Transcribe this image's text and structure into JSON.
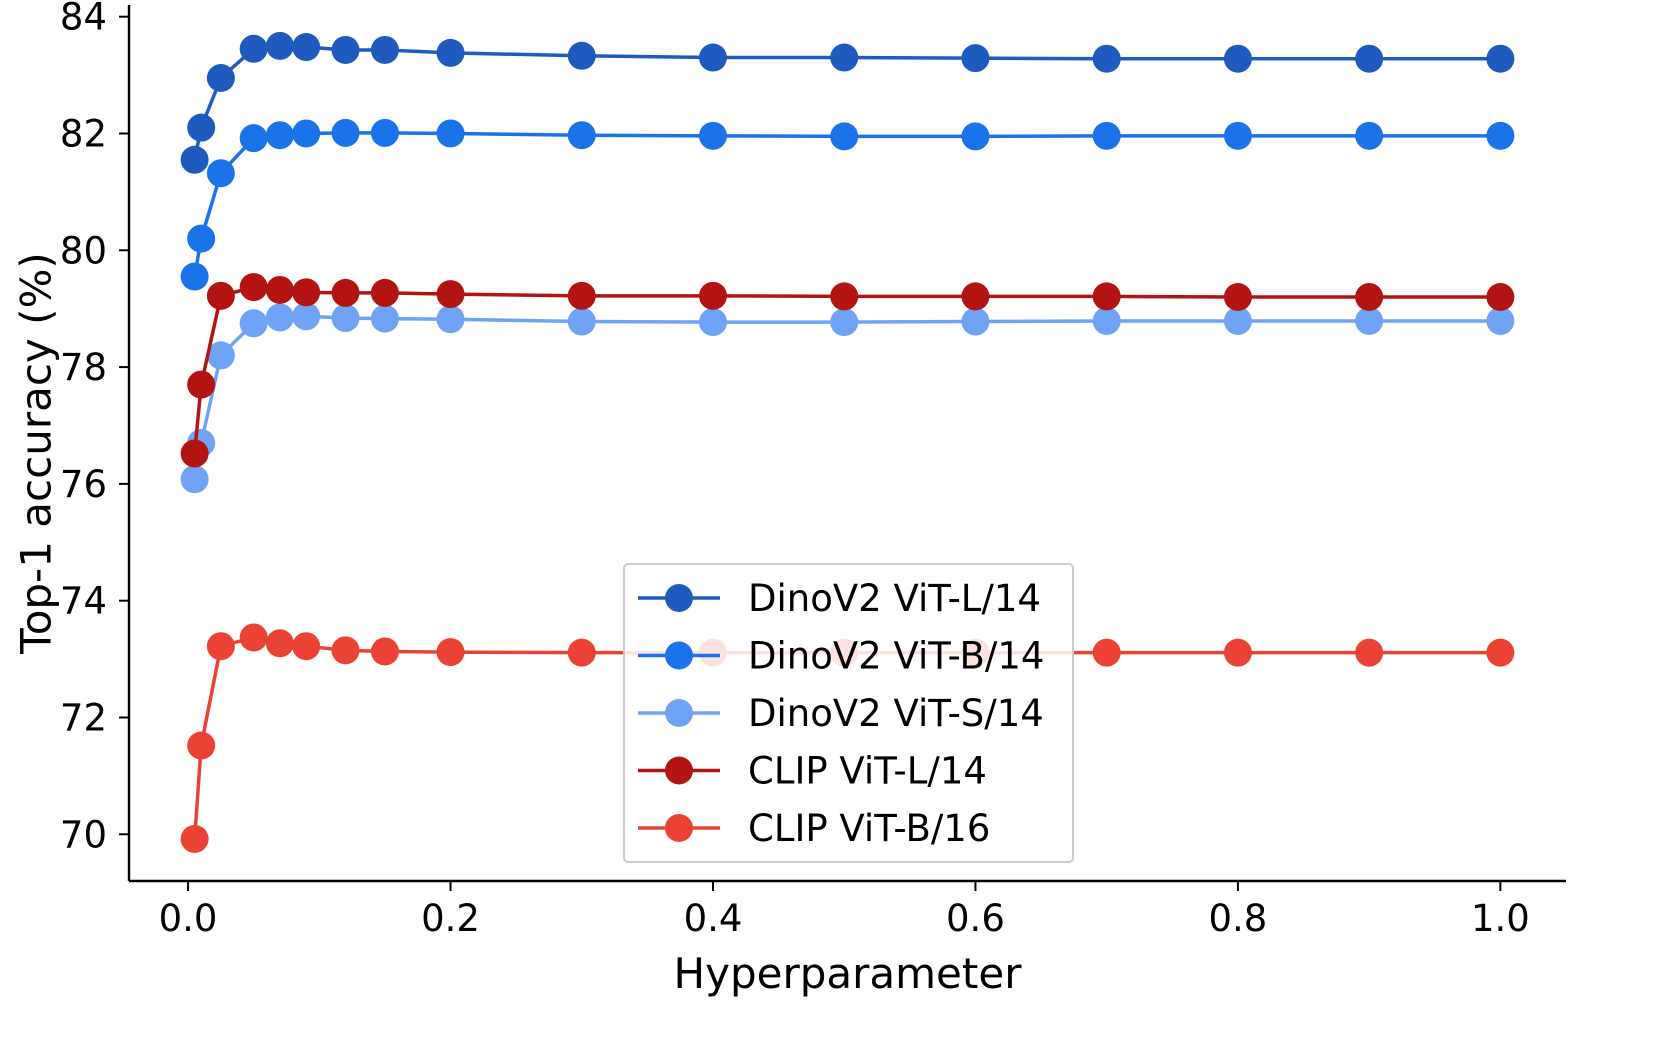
{
  "chart_data": {
    "type": "line",
    "title": "",
    "xlabel": "Hyperparameter",
    "ylabel": "Top-1 accuracy (%)",
    "xlim": [
      -0.045,
      1.05
    ],
    "ylim": [
      69.2,
      84.2
    ],
    "xticks": [
      0.0,
      0.2,
      0.4,
      0.6,
      0.8,
      1.0
    ],
    "xtick_labels": [
      "0.0",
      "0.2",
      "0.4",
      "0.6",
      "0.8",
      "1.0"
    ],
    "yticks": [
      70,
      72,
      74,
      76,
      78,
      80,
      82,
      84
    ],
    "ytick_labels": [
      "70",
      "72",
      "74",
      "76",
      "78",
      "80",
      "82",
      "84"
    ],
    "grid": false,
    "legend_position": "lower-center",
    "x": [
      0.005,
      0.01,
      0.025,
      0.05,
      0.07,
      0.09,
      0.12,
      0.15,
      0.2,
      0.3,
      0.4,
      0.5,
      0.6,
      0.7,
      0.8,
      0.9,
      1.0
    ],
    "series": [
      {
        "name": "DinoV2 ViT-L/14",
        "color": "#1f5bbf",
        "values": [
          81.55,
          82.1,
          82.95,
          83.45,
          83.5,
          83.48,
          83.43,
          83.43,
          83.38,
          83.33,
          83.3,
          83.3,
          83.29,
          83.28,
          83.28,
          83.28,
          83.28
        ]
      },
      {
        "name": "DinoV2 ViT-B/14",
        "color": "#1a73e8",
        "values": [
          79.55,
          80.2,
          81.32,
          81.92,
          81.97,
          82.0,
          82.01,
          82.01,
          82.0,
          81.97,
          81.96,
          81.95,
          81.95,
          81.96,
          81.96,
          81.96,
          81.96
        ]
      },
      {
        "name": "DinoV2 ViT-S/14",
        "color": "#6ea3f5",
        "values": [
          76.08,
          76.7,
          78.2,
          78.75,
          78.85,
          78.87,
          78.84,
          78.83,
          78.82,
          78.78,
          78.77,
          78.77,
          78.78,
          78.79,
          78.79,
          78.79,
          78.79
        ]
      },
      {
        "name": "CLIP ViT-L/14",
        "color": "#b31412",
        "values": [
          76.52,
          77.7,
          79.22,
          79.37,
          79.32,
          79.28,
          79.27,
          79.27,
          79.25,
          79.22,
          79.22,
          79.21,
          79.21,
          79.21,
          79.2,
          79.2,
          79.2
        ]
      },
      {
        "name": "CLIP ViT-B/16",
        "color": "#ea4335",
        "values": [
          69.92,
          71.52,
          73.22,
          73.37,
          73.27,
          73.22,
          73.15,
          73.13,
          73.12,
          73.11,
          73.11,
          73.11,
          73.11,
          73.11,
          73.11,
          73.11,
          73.11
        ]
      }
    ]
  }
}
